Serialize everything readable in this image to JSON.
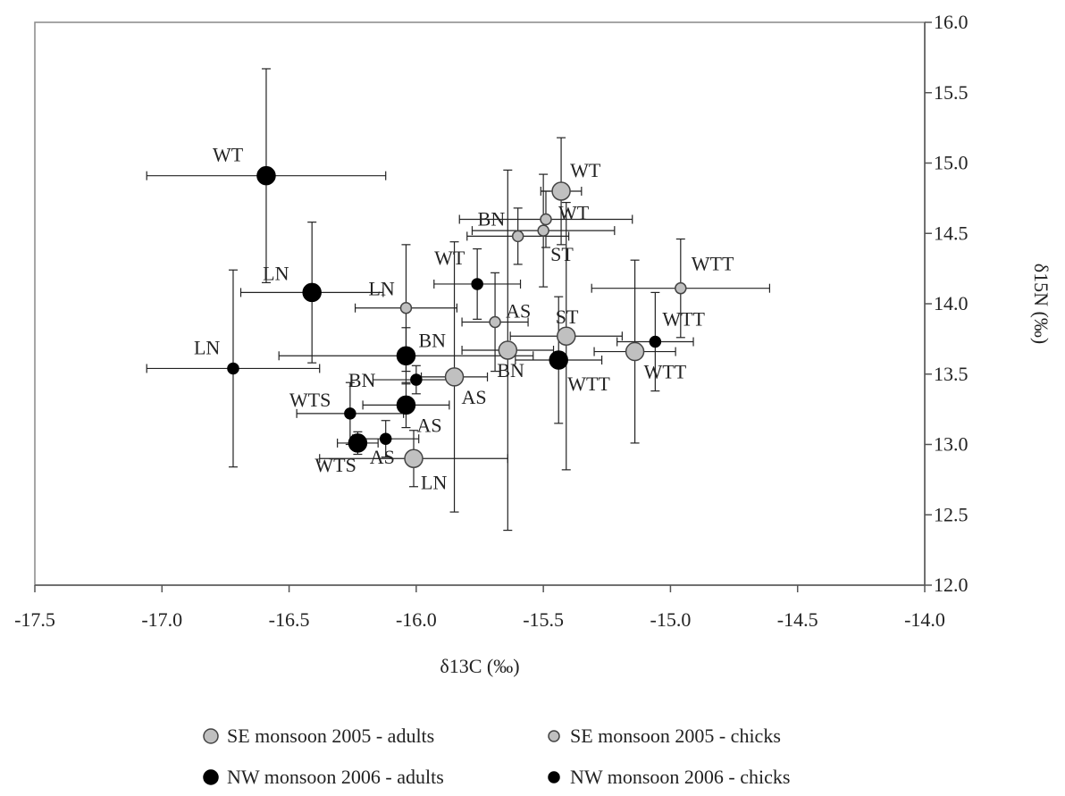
{
  "chart_data": {
    "type": "scatter",
    "xlabel": "δ13C (‰)",
    "ylabel": "δ15N (‰)",
    "xlim": [
      -17.5,
      -14.0
    ],
    "ylim": [
      12.0,
      16.0
    ],
    "x_ticks": [
      "-17.5",
      "-17.0",
      "-16.5",
      "-16.0",
      "-15.5",
      "-15.0",
      "-14.5",
      "-14.0"
    ],
    "y_ticks": [
      "12.0",
      "12.5",
      "13.0",
      "13.5",
      "14.0",
      "14.5",
      "15.0",
      "15.5",
      "16.0"
    ],
    "grid": false,
    "legend_position": "bottom",
    "error_bars": true,
    "series": [
      {
        "name": "SE monsoon 2005 - adults",
        "color": "#c0c0c0",
        "points": [
          {
            "label": "WT",
            "x": -15.43,
            "y": 14.8,
            "xerr": 0.08,
            "yerr": 0.38
          },
          {
            "label": "ST",
            "x": -15.41,
            "y": 13.77,
            "xerr": 0.22,
            "yerr": 0.95
          },
          {
            "label": "WTT",
            "x": -15.14,
            "y": 13.66,
            "xerr": 0.16,
            "yerr": 0.65
          },
          {
            "label": "BN",
            "x": -15.64,
            "y": 13.67,
            "xerr": 0.18,
            "yerr": 1.28
          },
          {
            "label": "AS",
            "x": -15.85,
            "y": 13.48,
            "xerr": 0.13,
            "yerr": 0.96
          },
          {
            "label": "LN",
            "x": -16.01,
            "y": 12.9,
            "xerr": 0.37,
            "yerr": 0.2
          }
        ]
      },
      {
        "name": "SE monsoon 2005 - chicks",
        "color": "#c0c0c0",
        "points": [
          {
            "label": "WT",
            "x": -15.49,
            "y": 14.6,
            "xerr": 0.34,
            "yerr": 0.2
          },
          {
            "label": "ST",
            "x": -15.5,
            "y": 14.52,
            "xerr": 0.28,
            "yerr": 0.4
          },
          {
            "label": "BN",
            "x": -15.6,
            "y": 14.48,
            "xerr": 0.2,
            "yerr": 0.2
          },
          {
            "label": "WTT",
            "x": -14.96,
            "y": 14.11,
            "xerr": 0.35,
            "yerr": 0.35
          },
          {
            "label": "LN",
            "x": -16.04,
            "y": 13.97,
            "xerr": 0.2,
            "yerr": 0.45
          },
          {
            "label": "AS",
            "x": -15.69,
            "y": 13.87,
            "xerr": 0.13,
            "yerr": 0.35
          }
        ]
      },
      {
        "name": "NW monsoon 2006 - adults",
        "color": "#000000",
        "points": [
          {
            "label": "WT",
            "x": -16.59,
            "y": 14.91,
            "xerr": 0.47,
            "yerr": 0.76
          },
          {
            "label": "LN",
            "x": -16.41,
            "y": 14.08,
            "xerr": 0.28,
            "yerr": 0.5
          },
          {
            "label": "BN",
            "x": -16.04,
            "y": 13.63,
            "xerr": 0.5,
            "yerr": 0.2
          },
          {
            "label": "WTT",
            "x": -15.44,
            "y": 13.6,
            "xerr": 0.17,
            "yerr": 0.45
          },
          {
            "label": "AS",
            "x": -16.04,
            "y": 13.28,
            "xerr": 0.17,
            "yerr": 0.16
          },
          {
            "label": "WTS",
            "x": -16.23,
            "y": 13.01,
            "xerr": 0.08,
            "yerr": 0.08
          }
        ]
      },
      {
        "name": "NW monsoon 2006 - chicks",
        "color": "#000000",
        "points": [
          {
            "label": "WT",
            "x": -15.76,
            "y": 14.14,
            "xerr": 0.17,
            "yerr": 0.25
          },
          {
            "label": "WTT",
            "x": -15.06,
            "y": 13.73,
            "xerr": 0.15,
            "yerr": 0.35
          },
          {
            "label": "LN",
            "x": -16.72,
            "y": 13.54,
            "xerr": 0.34,
            "yerr": 0.7
          },
          {
            "label": "BN",
            "x": -16.0,
            "y": 13.46,
            "xerr": 0.17,
            "yerr": 0.1
          },
          {
            "label": "WTS",
            "x": -16.26,
            "y": 13.22,
            "xerr": 0.21,
            "yerr": 0.22
          },
          {
            "label": "AS",
            "x": -16.12,
            "y": 13.04,
            "xerr": 0.13,
            "yerr": 0.13
          }
        ]
      }
    ]
  }
}
